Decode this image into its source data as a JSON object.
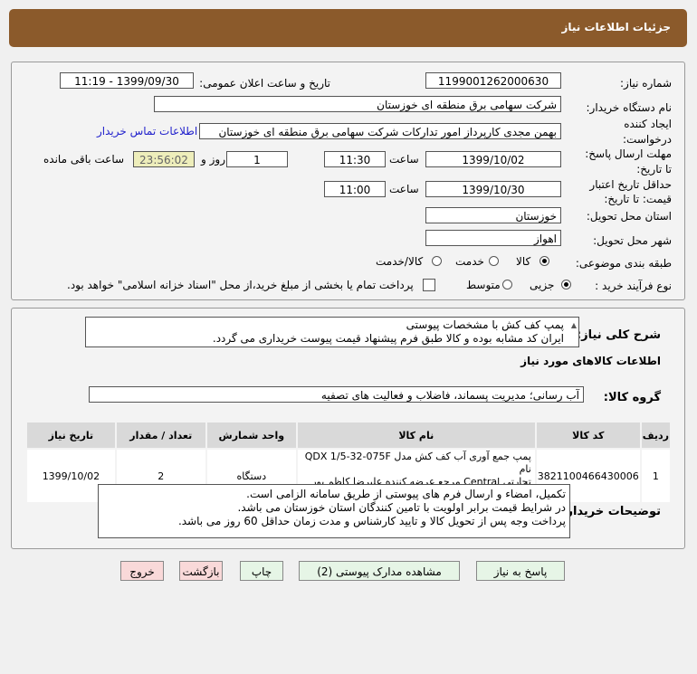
{
  "header": {
    "title": "جزئیات اطلاعات نیاز"
  },
  "form": {
    "need_number_label": "شماره نیاز:",
    "need_number": "1199001262000630",
    "announce_label": "تاریخ و ساعت اعلان عمومی:",
    "announce_value": "1399/09/30 - 11:19",
    "buyer_label": "نام دستگاه خریدار:",
    "buyer": "شرکت سهامی برق منطقه ای خوزستان",
    "creator_label_1": "ایجاد کننده",
    "creator_label_2": "درخواست:",
    "creator": "بهمن مجدی کارپرداز امور تدارکات شرکت سهامی برق منطقه ای خوزستان",
    "contact_link": "اطلاعات تماس خریدار",
    "deadline_label_1": "مهلت ارسال پاسخ:",
    "deadline_label_2": "تا تاریخ:",
    "deadline_date": "1399/10/02",
    "time_label": "ساعت",
    "deadline_time": "11:30",
    "days": "1",
    "days_label": "روز و",
    "remaining": "23:56:02",
    "remaining_label": "ساعت باقی مانده",
    "validity_label_1": "حداقل تاریخ اعتبار",
    "validity_label_2": "قیمت: تا تاریخ:",
    "validity_date": "1399/10/30",
    "validity_time": "11:00",
    "province_label": "استان محل تحویل:",
    "province": "خوزستان",
    "city_label": "شهر محل تحویل:",
    "city": "اهواز",
    "category_label": "طبقه بندی موضوعی:",
    "category_options": [
      "کالا",
      "خدمت",
      "کالا/خدمت"
    ],
    "category_selected": "کالا",
    "process_label": "نوع فرآیند خرید :",
    "process_options": [
      "جزیی",
      "متوسط"
    ],
    "process_selected": "جزیی",
    "payment_note": "پرداخت تمام یا بخشی از مبلغ خرید،از محل \"اسناد خزانه اسلامی\" خواهد بود."
  },
  "description": {
    "label": "شرح کلی نیاز:",
    "line1": "پمپ کف کش با مشخصات پیوستی",
    "line2": "ایران کد مشابه بوده و کالا طبق فرم پیشنهاد قیمت پیوست خریداری می گردد."
  },
  "goods": {
    "section_title": "اطلاعات کالاهای مورد نیاز",
    "group_label": "گروه کالا:",
    "group": "آب رسانی؛ مدیریت پسماند، فاضلاب و فعالیت های تصفیه",
    "columns": [
      "ردیف",
      "کد کالا",
      "نام کالا",
      "واحد شمارش",
      "تعداد / مقدار",
      "تاریخ نیاز"
    ],
    "rows": [
      {
        "index": "1",
        "code": "3821100466430006",
        "name_1": "پمپ جمع آوری آب کف کش مدل QDX 1/5-32-075F نام",
        "name_2": "تجارتی Central مرجع عرضه کننده علیرضا کاظم پور دیزجی",
        "unit": "دستگاه",
        "qty": "2",
        "date": "1399/10/02"
      }
    ]
  },
  "notes": {
    "label": "توضیحات خریدار:",
    "line1": "تکمیل، امضاء و ارسال فرم های پیوستی از طریق سامانه الزامی است.",
    "line2": "در شرایط  قیمت برابر اولویت با تامین کنندگان استان خوزستان می باشد.",
    "line3": "پرداخت وجه پس از تحویل کالا و تایید کارشناس و مدت زمان حداقل 60 روز می باشد."
  },
  "buttons": {
    "reply": "پاسخ به نیاز",
    "attachments": "مشاهده مدارک پیوستی (2)",
    "print": "چاپ",
    "back": "بازگشت",
    "exit": "خروج"
  }
}
